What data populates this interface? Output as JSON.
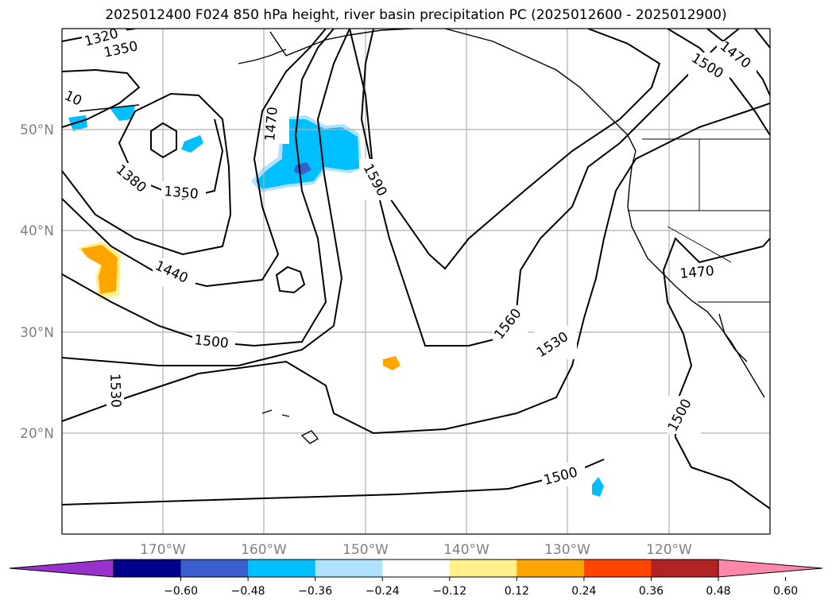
{
  "title": "2025012400 F024 850 hPa height, river basin precipitation PC (2025012600 - 2025012900)",
  "map": {
    "lat_labels": [
      "50°N",
      "40°N",
      "30°N",
      "20°N"
    ],
    "lon_labels": [
      "170°W",
      "160°W",
      "150°W",
      "140°W",
      "130°W",
      "120°W"
    ],
    "contour_labels": [
      "1320",
      "1350",
      "10",
      "1380",
      "1350",
      "1470",
      "1590",
      "1440",
      "1500",
      "1530",
      "1560",
      "1530",
      "1500",
      "1500",
      "1470",
      "1470",
      "1500"
    ]
  },
  "colorbar": {
    "colors": [
      "#9932cc",
      "#00008b",
      "#3a5fcd",
      "#00bfff",
      "#b0e2ff",
      "#ffffff",
      "#fff08c",
      "#ffa500",
      "#ff4500",
      "#b22222",
      "#ff88aa"
    ],
    "ticks": [
      "−0.60",
      "−0.48",
      "−0.36",
      "−0.24",
      "−0.12",
      "0.12",
      "0.24",
      "0.36",
      "0.48",
      "0.60"
    ]
  }
}
